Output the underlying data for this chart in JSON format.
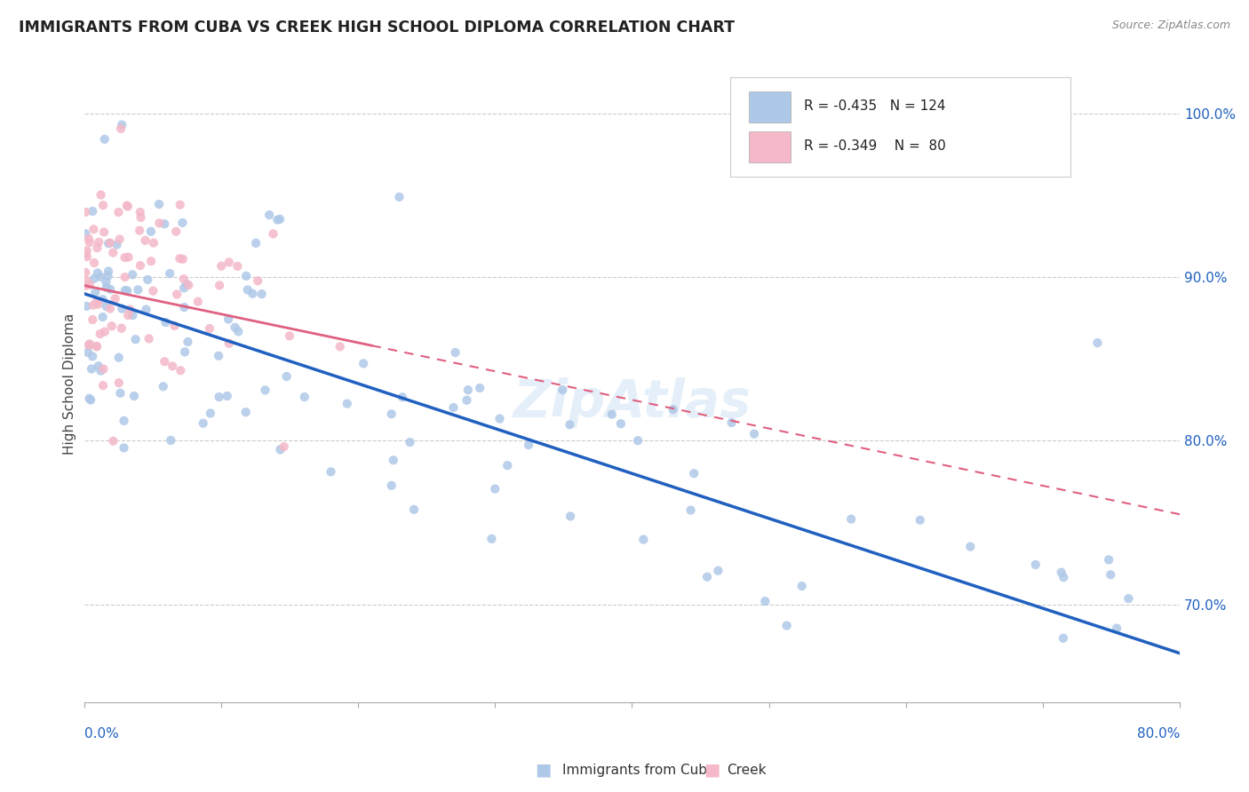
{
  "title": "IMMIGRANTS FROM CUBA VS CREEK HIGH SCHOOL DIPLOMA CORRELATION CHART",
  "source": "Source: ZipAtlas.com",
  "ylabel": "High School Diploma",
  "xmin": 0.0,
  "xmax": 80.0,
  "ymin": 64.0,
  "ymax": 103.0,
  "yticks": [
    70.0,
    80.0,
    90.0,
    100.0
  ],
  "ytick_labels": [
    "70.0%",
    "80.0%",
    "90.0%",
    "100.0%"
  ],
  "blue_R": -0.435,
  "blue_N": 124,
  "pink_R": -0.349,
  "pink_N": 80,
  "blue_color": "#aec8e8",
  "pink_color": "#f4b8c8",
  "blue_line_color": "#2060c0",
  "pink_line_color": "#e06080",
  "legend_label_blue": "Immigrants from Cuba",
  "legend_label_pink": "Creek",
  "watermark": "ZipAtlas",
  "blue_line_x0": 0.0,
  "blue_line_y0": 89.0,
  "blue_line_x1": 80.0,
  "blue_line_y1": 67.0,
  "pink_line_x0": 0.0,
  "pink_line_y0": 89.5,
  "pink_line_x1": 80.0,
  "pink_line_y1": 75.5,
  "pink_solid_xmax": 21.0
}
